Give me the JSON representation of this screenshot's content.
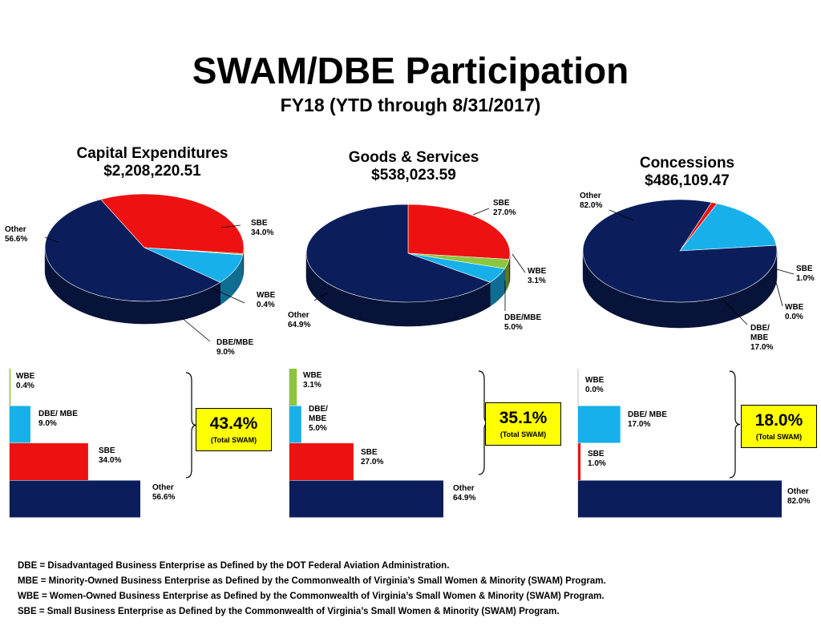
{
  "title": "SWAM/DBE Participation",
  "subtitle": "FY18 (YTD through 8/31/2017)",
  "colors": {
    "Other": "#0b1e5b",
    "SBE": "#ee1111",
    "WBE": "#8cc63f",
    "DBE/MBE": "#17b0ea",
    "box": "#ffff00"
  },
  "chart_data": [
    {
      "type": "pie",
      "title": "Capital Expenditures",
      "subtitle": "$2,208,220.51",
      "slices": [
        {
          "name": "SBE",
          "value": 34.0,
          "label": [
            "SBE",
            "34.0%"
          ]
        },
        {
          "name": "WBE",
          "value": 0.4,
          "label": [
            "WBE",
            "0.4%"
          ]
        },
        {
          "name": "DBE/MBE",
          "value": 9.0,
          "label": [
            "DBE/MBE",
            "9.0%"
          ]
        },
        {
          "name": "Other",
          "value": 56.6,
          "label": [
            "Other",
            "56.6%"
          ]
        }
      ]
    },
    {
      "type": "pie",
      "title": "Goods & Services",
      "subtitle": "$538,023.59",
      "slices": [
        {
          "name": "SBE",
          "value": 27.0,
          "label": [
            "SBE",
            "27.0%"
          ]
        },
        {
          "name": "WBE",
          "value": 3.1,
          "label": [
            "WBE",
            "3.1%"
          ]
        },
        {
          "name": "DBE/MBE",
          "value": 5.0,
          "label": [
            "DBE/MBE",
            "5.0%"
          ]
        },
        {
          "name": "Other",
          "value": 64.9,
          "label": [
            "Other",
            "64.9%"
          ]
        }
      ]
    },
    {
      "type": "pie",
      "title": "Concessions",
      "subtitle": "$486,109.47",
      "slices": [
        {
          "name": "SBE",
          "value": 1.0,
          "label": [
            "SBE",
            "1.0%"
          ]
        },
        {
          "name": "WBE",
          "value": 0.0,
          "label": [
            "WBE",
            "0.0%"
          ]
        },
        {
          "name": "DBE/MBE",
          "value": 17.0,
          "label": [
            "DBE/",
            "MBE",
            "17.0%"
          ]
        },
        {
          "name": "Other",
          "value": 82.0,
          "label": [
            "Other",
            "82.0%"
          ]
        }
      ]
    },
    {
      "type": "bar",
      "orientation": "horizontal",
      "categories": [
        "WBE",
        "DBE/MBE",
        "SBE",
        "Other"
      ],
      "values": [
        0.4,
        9.0,
        34.0,
        56.6
      ],
      "labels": [
        [
          "WBE",
          "0.4%"
        ],
        [
          "DBE/ MBE",
          "9.0%"
        ],
        [
          "SBE",
          "34.0%"
        ],
        [
          "Other",
          "56.6%"
        ]
      ],
      "total": "43.4%",
      "total_caption": "(Total SWAM)"
    },
    {
      "type": "bar",
      "orientation": "horizontal",
      "categories": [
        "WBE",
        "DBE/MBE",
        "SBE",
        "Other"
      ],
      "values": [
        3.1,
        5.0,
        27.0,
        64.9
      ],
      "labels": [
        [
          "WBE",
          "3.1%"
        ],
        [
          "DBE/",
          "MBE",
          "5.0%"
        ],
        [
          "SBE",
          "27.0%"
        ],
        [
          "Other",
          "64.9%"
        ]
      ],
      "total": "35.1%",
      "total_caption": "(Total SWAM)"
    },
    {
      "type": "bar",
      "orientation": "horizontal",
      "categories": [
        "WBE",
        "DBE/MBE",
        "SBE",
        "Other"
      ],
      "values": [
        0.0,
        17.0,
        1.0,
        82.0
      ],
      "labels": [
        [
          "WBE",
          "0.0%"
        ],
        [
          "DBE/ MBE",
          "17.0%"
        ],
        [
          "SBE",
          "1.0%"
        ],
        [
          "Other",
          "82.0%"
        ]
      ],
      "total": "18.0%",
      "total_caption": "(Total SWAM)"
    }
  ],
  "footnotes": [
    "DBE = Disadvantaged Business Enterprise as Defined by the DOT Federal Aviation Administration.",
    "MBE = Minority-Owned Business Enterprise as Defined by the Commonwealth of Virginia’s Small Women & Minority (SWAM) Program.",
    "WBE = Women-Owned Business Enterprise as Defined by the Commonwealth of Virginia’s Small Women & Minority (SWAM) Program.",
    "SBE = Small Business Enterprise as Defined by the Commonwealth of Virginia’s Small Women & Minority (SWAM) Program."
  ]
}
